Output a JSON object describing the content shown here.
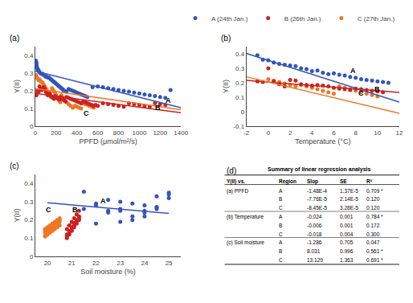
{
  "chart_data": [
    {
      "type": "scatter",
      "xlabel": "PPFD (μmol/m²/s)",
      "ylabel": "Y(II)",
      "xlim": [
        0,
        1400
      ],
      "ylim": [
        0,
        0.45
      ],
      "xticks": [
        0,
        200,
        400,
        600,
        800,
        1000,
        1200,
        1400
      ],
      "yticks": [
        0,
        0.1,
        0.2,
        0.3,
        0.4
      ],
      "grid": false,
      "legend": "upper right",
      "series": [
        {
          "name": "C (27th Jan.)",
          "color": "#ee7722",
          "x": [
            5,
            10,
            20,
            30,
            40,
            50,
            60,
            70,
            80,
            90,
            100,
            110,
            120,
            130,
            140,
            150,
            160,
            170,
            180,
            190,
            200,
            210,
            220,
            230,
            240,
            250,
            260,
            270,
            280,
            300,
            320,
            340,
            360,
            380,
            400,
            420,
            440,
            460,
            480,
            500,
            520,
            540,
            560
          ],
          "values": [
            0.29,
            0.28,
            0.27,
            0.26,
            0.265,
            0.255,
            0.25,
            0.245,
            0.235,
            0.225,
            0.215,
            0.205,
            0.195,
            0.185,
            0.175,
            0.165,
            0.215,
            0.205,
            0.195,
            0.185,
            0.175,
            0.165,
            0.155,
            0.145,
            0.135,
            0.175,
            0.165,
            0.155,
            0.145,
            0.135,
            0.125,
            0.115,
            0.105,
            0.115,
            0.11,
            0.105,
            0.1,
            0.13,
            0.125,
            0.12,
            0.115,
            0.11,
            0.105
          ]
        },
        {
          "name": "B (26th Jan.)",
          "color": "#cc2222",
          "x": [
            5,
            10,
            20,
            30,
            40,
            50,
            60,
            70,
            80,
            90,
            100,
            110,
            120,
            130,
            140,
            150,
            160,
            170,
            180,
            190,
            200,
            210,
            220,
            230,
            240,
            250,
            260,
            270,
            280,
            290,
            300,
            320,
            340,
            360,
            380,
            400,
            420,
            440,
            460,
            480,
            500,
            520,
            540,
            560,
            580,
            600,
            650,
            700,
            750,
            800,
            850,
            900,
            950,
            1000,
            1050,
            1100,
            1150,
            1200,
            1250
          ],
          "values": [
            0.18,
            0.175,
            0.2,
            0.195,
            0.225,
            0.21,
            0.205,
            0.215,
            0.22,
            0.21,
            0.195,
            0.185,
            0.175,
            0.18,
            0.185,
            0.17,
            0.165,
            0.16,
            0.155,
            0.17,
            0.165,
            0.16,
            0.155,
            0.15,
            0.165,
            0.16,
            0.155,
            0.15,
            0.145,
            0.14,
            0.165,
            0.16,
            0.155,
            0.15,
            0.145,
            0.14,
            0.135,
            0.13,
            0.14,
            0.135,
            0.13,
            0.125,
            0.12,
            0.115,
            0.12,
            0.115,
            0.13,
            0.125,
            0.12,
            0.115,
            0.11,
            0.13,
            0.125,
            0.12,
            0.115,
            0.11,
            0.13,
            0.125,
            0.12
          ]
        },
        {
          "name": "A (24th Jan.)",
          "color": "#3355bb",
          "x": [
            5,
            8,
            10,
            12,
            15,
            20,
            25,
            30,
            35,
            40,
            50,
            60,
            70,
            80,
            90,
            100,
            110,
            120,
            130,
            140,
            150,
            160,
            170,
            180,
            190,
            200,
            210,
            220,
            230,
            240,
            250,
            260,
            270,
            280,
            300,
            320,
            340,
            360,
            380,
            400,
            420,
            440,
            460,
            480,
            500,
            550,
            600,
            650,
            700,
            750,
            800,
            850,
            900,
            950,
            1000,
            1050,
            1100,
            1150,
            1200,
            1250,
            1300
          ],
          "values": [
            0.37,
            0.355,
            0.36,
            0.345,
            0.335,
            0.325,
            0.32,
            0.315,
            0.31,
            0.305,
            0.3,
            0.295,
            0.295,
            0.29,
            0.285,
            0.28,
            0.28,
            0.275,
            0.275,
            0.27,
            0.265,
            0.26,
            0.255,
            0.25,
            0.245,
            0.24,
            0.235,
            0.23,
            0.225,
            0.22,
            0.215,
            0.21,
            0.205,
            0.2,
            0.195,
            0.21,
            0.205,
            0.2,
            0.195,
            0.19,
            0.185,
            0.18,
            0.175,
            0.17,
            0.165,
            0.22,
            0.225,
            0.22,
            0.215,
            0.21,
            0.205,
            0.2,
            0.195,
            0.19,
            0.185,
            0.18,
            0.175,
            0.17,
            0.165,
            0.16,
            0.205
          ]
        },
        {
          "type": "line",
          "color": "#3355bb",
          "x": [
            0,
            1400
          ],
          "values": [
            0.312,
            0.1048
          ]
        },
        {
          "type": "line",
          "color": "#cc2222",
          "x": [
            0,
            1400
          ],
          "values": [
            0.185,
            0.07636
          ]
        },
        {
          "type": "line",
          "color": "#ee7722",
          "x": [
            0,
            1400
          ],
          "values": [
            0.212,
            0.0937
          ]
        }
      ],
      "annotations": [
        {
          "text": "(a)"
        },
        {
          "x": 1280,
          "y": 0.145,
          "text": "A"
        },
        {
          "x": 1180,
          "y": 0.105,
          "text": "B"
        },
        {
          "x": 490,
          "y": 0.075,
          "text": "C"
        }
      ]
    },
    {
      "type": "scatter",
      "xlabel": "Temperature (°C)",
      "ylabel": "Y(II)",
      "xlim": [
        -2,
        12
      ],
      "ylim": [
        -0.1,
        0.45
      ],
      "xticks": [
        -2,
        0,
        2,
        4,
        6,
        8,
        10,
        12
      ],
      "yticks": [
        -0.1,
        0,
        0.1,
        0.2,
        0.3,
        0.4
      ],
      "grid": false,
      "series": [
        {
          "name": "C (27th Jan.)",
          "color": "#ee7722",
          "x": [
            0,
            0.5,
            1,
            1.5,
            2,
            2.5,
            3,
            3.5,
            4,
            4.5,
            5,
            5.5,
            6,
            6.5,
            7,
            7.5,
            8,
            8.5,
            9,
            9.5,
            10
          ],
          "values": [
            0.225,
            0.215,
            0.205,
            0.195,
            0.185,
            0.175,
            0.185,
            0.175,
            0.165,
            0.155,
            0.145,
            0.135,
            0.125,
            0.175,
            0.165,
            0.155,
            0.145,
            0.135,
            0.125,
            0.115,
            0.105
          ]
        },
        {
          "name": "B (26th Jan.)",
          "color": "#cc2222",
          "x": [
            -1,
            -0.5,
            0,
            0.5,
            1,
            1.5,
            2,
            2.5,
            3,
            3.5,
            4,
            4.5,
            5,
            5.5,
            6,
            6.5,
            7,
            7.5,
            8,
            8.5,
            9,
            9.5,
            10,
            10.5
          ],
          "values": [
            0.21,
            0.205,
            0.3,
            0.21,
            0.19,
            0.175,
            0.22,
            0.215,
            0.19,
            0.185,
            0.18,
            0.185,
            0.18,
            0.175,
            0.165,
            0.16,
            0.155,
            0.15,
            0.16,
            0.155,
            0.15,
            0.145,
            0.14,
            0.135
          ]
        },
        {
          "name": "A (24th Jan.)",
          "color": "#3355bb",
          "x": [
            -1,
            -0.5,
            0,
            0.5,
            1,
            1.5,
            2,
            2.5,
            3,
            3.5,
            4,
            4.5,
            5,
            5.5,
            6,
            6.5,
            7,
            7.5,
            8,
            8.5,
            9,
            9.5,
            10,
            10.5,
            11
          ],
          "values": [
            0.39,
            0.36,
            0.355,
            0.34,
            0.33,
            0.325,
            0.32,
            0.315,
            0.3,
            0.295,
            0.28,
            0.285,
            0.27,
            0.26,
            0.265,
            0.255,
            0.25,
            0.24,
            0.235,
            0.225,
            0.22,
            0.215,
            0.21,
            0.205,
            0.2
          ]
        },
        {
          "type": "line",
          "color": "#3355bb",
          "x": [
            -2,
            12
          ],
          "values": [
            0.403,
            0.067
          ]
        },
        {
          "type": "line",
          "color": "#cc2222",
          "x": [
            -2,
            12
          ],
          "values": [
            0.217,
            0.133
          ]
        },
        {
          "type": "line",
          "color": "#ee7722",
          "x": [
            -2,
            12
          ],
          "values": [
            0.241,
            -0.011
          ]
        }
      ],
      "annotations": [
        {
          "text": "(b)"
        },
        {
          "x": 7.8,
          "y": 0.285,
          "text": "A"
        },
        {
          "x": 10,
          "y": 0.155,
          "text": "B"
        },
        {
          "x": 8.5,
          "y": 0.125,
          "text": "C"
        }
      ]
    },
    {
      "type": "scatter",
      "xlabel": "Soil moisture (%)",
      "ylabel": "Y(II)",
      "xlim": [
        19.5,
        25.5
      ],
      "ylim": [
        0,
        0.45
      ],
      "xticks": [
        20,
        21,
        22,
        23,
        24,
        25
      ],
      "yticks": [
        0,
        0.1,
        0.2,
        0.3,
        0.4
      ],
      "grid": false,
      "series": [
        {
          "name": "C (27th Jan.)",
          "color": "#ee7722",
          "x": [
            19.9,
            20.0,
            20.1,
            20.2,
            20.3,
            20.4,
            20.5,
            19.9,
            20.0,
            20.1,
            20.2,
            20.3,
            20.4,
            20.5,
            19.9,
            20.0,
            20.1,
            20.2,
            20.3,
            20.4,
            20.5,
            19.9,
            20.0,
            20.1,
            20.2,
            20.3,
            20.4,
            20.5
          ],
          "values": [
            0.13,
            0.14,
            0.15,
            0.16,
            0.17,
            0.18,
            0.19,
            0.14,
            0.15,
            0.16,
            0.17,
            0.18,
            0.19,
            0.2,
            0.15,
            0.16,
            0.17,
            0.18,
            0.19,
            0.2,
            0.21,
            0.11,
            0.12,
            0.13,
            0.14,
            0.15,
            0.16,
            0.17
          ]
        },
        {
          "name": "B (26th Jan.)",
          "color": "#cc2222",
          "x": [
            20.8,
            20.9,
            21.0,
            21.1,
            21.2,
            21.3,
            20.8,
            20.9,
            21.0,
            21.1,
            21.2,
            21.3,
            20.8,
            20.9,
            21.0,
            21.1,
            21.2,
            21.3,
            20.8,
            20.9,
            21.0,
            21.1,
            21.2,
            21.3
          ],
          "values": [
            0.1,
            0.12,
            0.14,
            0.16,
            0.18,
            0.2,
            0.12,
            0.14,
            0.16,
            0.18,
            0.2,
            0.22,
            0.15,
            0.17,
            0.19,
            0.21,
            0.23,
            0.25,
            0.11,
            0.13,
            0.15,
            0.17,
            0.19,
            0.21
          ]
        },
        {
          "name": "A (24th Jan.)",
          "color": "#3355bb",
          "x": [
            21.5,
            22,
            22.5,
            22,
            21.5,
            22.5,
            23,
            23.5,
            24,
            24.5,
            25,
            24.5,
            23,
            22.5,
            23.5,
            24,
            24.5,
            25,
            24,
            23.5,
            23,
            22,
            24,
            25,
            24.5,
            23
          ],
          "values": [
            0.355,
            0.29,
            0.31,
            0.28,
            0.26,
            0.24,
            0.3,
            0.29,
            0.28,
            0.27,
            0.35,
            0.33,
            0.26,
            0.25,
            0.22,
            0.25,
            0.27,
            0.32,
            0.24,
            0.2,
            0.19,
            0.18,
            0.22,
            0.34,
            0.26,
            0.25
          ]
        },
        {
          "type": "line",
          "color": "#3355bb",
          "x": [
            20.0,
            25.0
          ],
          "values": [
            0.294,
            0.236
          ]
        },
        {
          "type": "line",
          "color": "#cc2222",
          "x": [
            20.8,
            21.35
          ],
          "values": [
            0.168,
            0.21
          ]
        },
        {
          "type": "line",
          "color": "#ee7722",
          "x": [
            19.9,
            20.55
          ],
          "values": [
            0.099,
            0.185
          ]
        }
      ],
      "annotations": [
        {
          "text": "(c)"
        },
        {
          "x": 22.3,
          "y": 0.305,
          "text": "A"
        },
        {
          "x": 21.15,
          "y": 0.258,
          "text": "B"
        },
        {
          "x": 20.05,
          "y": 0.258,
          "text": "C"
        }
      ]
    },
    {
      "type": "table",
      "title": "Summary of linear regression analysis",
      "annotations": [
        {
          "text": "(d)"
        }
      ],
      "columns": [
        "Y(II) vs.",
        "Region",
        "Slop",
        "SE",
        "R²"
      ],
      "rows": [
        [
          "(a) PPFD",
          "A",
          "-1.48E-4",
          "1.37E-5",
          "0.709 *"
        ],
        [
          null,
          "B",
          "-7.76E-5",
          "2.14E-5",
          "0.120"
        ],
        [
          null,
          "C",
          "-8.45E-5",
          "3.28E-5",
          "0.120"
        ],
        [
          "(b) Temperature",
          "A",
          "-0.024",
          "0.001",
          "0.784 *"
        ],
        [
          null,
          "B",
          "-0.006",
          "0.001",
          "0.172"
        ],
        [
          null,
          "C",
          "-0.018",
          "0.004",
          "0.300"
        ],
        [
          "(c) Soil moisture",
          "A",
          "-1.286",
          "0.705",
          "0.047"
        ],
        [
          null,
          "B",
          "8.031",
          "0.996",
          "0.561 *"
        ],
        [
          null,
          "C",
          "13.129",
          "1.363",
          "0.691 *"
        ]
      ]
    }
  ]
}
